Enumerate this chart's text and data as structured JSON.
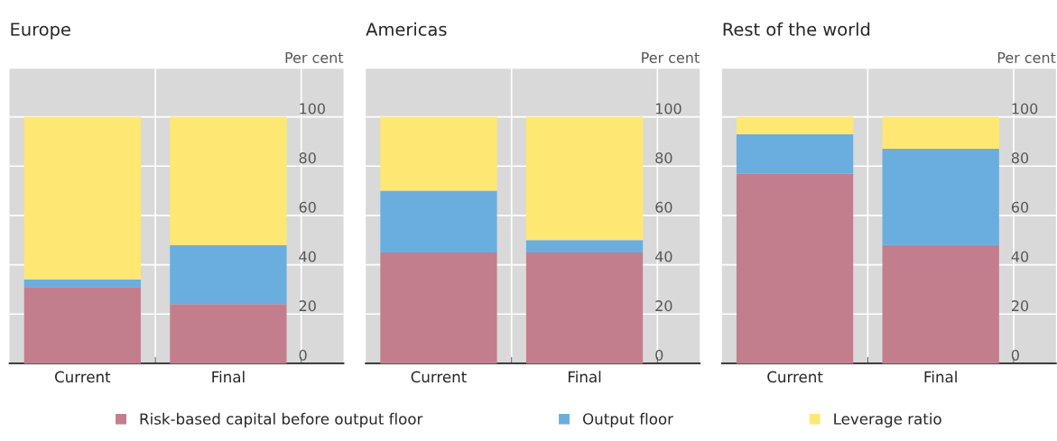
{
  "chart_data": [
    {
      "type": "bar",
      "title": "Europe",
      "ylabel": "Per cent",
      "categories": [
        "Current",
        "Final"
      ],
      "stacked": true,
      "ylim": [
        0,
        119.5
      ],
      "yticks": [
        0,
        20,
        40,
        60,
        80,
        100
      ],
      "grid": true,
      "legend": "bottom",
      "series": [
        {
          "name": "Risk-based capital before output floor",
          "color": "#c27e8d",
          "values": [
            31,
            24
          ]
        },
        {
          "name": "Output floor",
          "color": "#6aaddf",
          "values": [
            3,
            24
          ]
        },
        {
          "name": "Leverage ratio",
          "color": "#fee873",
          "values": [
            66,
            52
          ]
        }
      ]
    },
    {
      "type": "bar",
      "title": "Americas",
      "ylabel": "Per cent",
      "categories": [
        "Current",
        "Final"
      ],
      "stacked": true,
      "ylim": [
        0,
        119.5
      ],
      "yticks": [
        0,
        20,
        40,
        60,
        80,
        100
      ],
      "grid": true,
      "series": [
        {
          "color": "#c27e8d",
          "values": [
            45,
            45
          ]
        },
        {
          "color": "#6aaddf",
          "values": [
            25,
            5
          ]
        },
        {
          "color": "#fee873",
          "values": [
            30,
            50
          ]
        }
      ]
    },
    {
      "type": "bar",
      "title": "Rest of the world",
      "ylabel": "Per cent",
      "categories": [
        "Current",
        "Final"
      ],
      "stacked": true,
      "ylim": [
        0,
        119.5
      ],
      "yticks": [
        0,
        20,
        40,
        60,
        80,
        100
      ],
      "grid": true,
      "series": [
        {
          "color": "#c27e8d",
          "values": [
            77,
            48
          ]
        },
        {
          "color": "#6aaddf",
          "values": [
            16,
            39
          ]
        },
        {
          "color": "#fee873",
          "values": [
            7,
            13
          ]
        }
      ]
    }
  ]
}
